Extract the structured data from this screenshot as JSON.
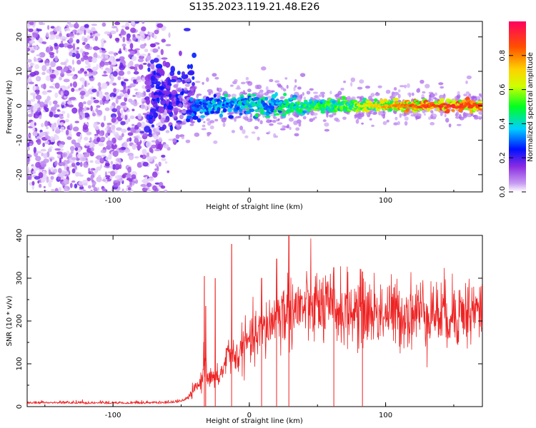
{
  "page_title": "S135.2023.119.21.48.E26",
  "colors": {
    "spectrogram_low": "#8a2be2",
    "snr_line": "#ee2222"
  },
  "chart_data": [
    {
      "type": "heatmap",
      "title": "",
      "xlabel": "Height of straight line (km)",
      "ylabel": "Frequency (Hz)",
      "xlim": [
        -163,
        171
      ],
      "ylim": [
        -25,
        24.5
      ],
      "x_ticks": [
        "-100",
        "0",
        "100"
      ],
      "y_ticks": [
        "-20",
        "-10",
        "0",
        "10",
        "20"
      ],
      "colorbar": {
        "label": "Normalized spectral amplitude",
        "range": [
          0.0,
          1.0
        ],
        "ticks": [
          "0.0",
          "0.2",
          "0.4",
          "0.6",
          "0.8"
        ],
        "colormap": "rainbow"
      },
      "description_points": {
        "noise_region_x": [
          -163,
          -60
        ],
        "signal_onset_x": -45,
        "signal_frequency_hz": 0,
        "profile_x": [
          -60,
          -45,
          -35,
          -20,
          0,
          20,
          40,
          60,
          80,
          100,
          120,
          140,
          160,
          171
        ],
        "profile_amplitude": [
          0.25,
          0.3,
          0.35,
          0.4,
          0.45,
          0.45,
          0.5,
          0.55,
          0.6,
          0.7,
          0.8,
          0.85,
          0.85,
          0.85
        ]
      }
    },
    {
      "type": "line",
      "title": "",
      "xlabel": "Height of straight line (km)",
      "ylabel": "SNR (10 * v/v)",
      "xlim": [
        -163,
        171
      ],
      "ylim": [
        0,
        400
      ],
      "x_ticks": [
        "-100",
        "0",
        "100"
      ],
      "y_ticks": [
        "0",
        "100",
        "200",
        "300",
        "400"
      ],
      "series": [
        {
          "x": [
            -163,
            -140,
            -120,
            -100,
            -80,
            -60,
            -50,
            -45,
            -40,
            -35,
            -33,
            -30,
            -25,
            -20,
            -15,
            -10,
            -5,
            0,
            10,
            20,
            30,
            40,
            50,
            60,
            70,
            80,
            90,
            100,
            110,
            120,
            130,
            140,
            150,
            160,
            171
          ],
          "y": [
            8,
            9,
            8,
            8,
            8,
            9,
            12,
            20,
            40,
            60,
            120,
            70,
            60,
            80,
            130,
            110,
            140,
            150,
            175,
            210,
            225,
            230,
            235,
            225,
            225,
            220,
            220,
            220,
            215,
            220,
            225,
            215,
            220,
            220,
            225
          ]
        }
      ],
      "spikes": [
        {
          "x": -33,
          "y": 305
        },
        {
          "x": -32,
          "y": 235
        },
        {
          "x": -25,
          "y": 300
        },
        {
          "x": -13,
          "y": 380
        },
        {
          "x": 9,
          "y": 300
        },
        {
          "x": 20,
          "y": 345
        },
        {
          "x": 29,
          "y": 400
        },
        {
          "x": 62,
          "y": 325
        },
        {
          "x": 83,
          "y": 315
        }
      ]
    }
  ]
}
